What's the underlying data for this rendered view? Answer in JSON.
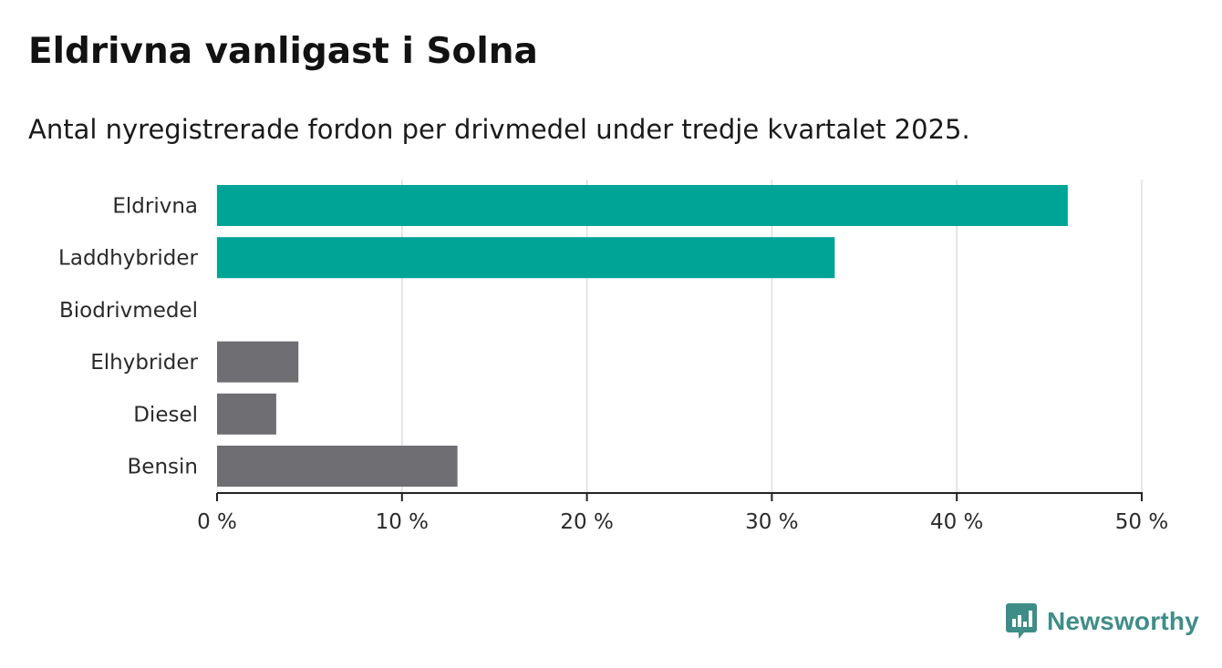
{
  "title": "Eldrivna vanligast i Solna",
  "subtitle": "Antal nyregistrerade fordon per drivmedel under tredje kvartalet 2025.",
  "brand": {
    "name": "Newsworthy",
    "icon": "newsworthy-logo-icon",
    "color": "#3e8d88"
  },
  "colors": {
    "highlight": "#00a497",
    "default": "#6e6e73",
    "grid": "#dddddd",
    "axis": "#222222"
  },
  "chart_data": {
    "type": "bar",
    "orientation": "horizontal",
    "title": "Eldrivna vanligast i Solna",
    "subtitle": "Antal nyregistrerade fordon per drivmedel under tredje kvartalet 2025.",
    "xlabel": "",
    "ylabel": "",
    "unit": "%",
    "categories": [
      "Eldrivna",
      "Laddhybrider",
      "Biodrivmedel",
      "Elhybrider",
      "Diesel",
      "Bensin"
    ],
    "values": [
      46.0,
      33.4,
      0,
      4.4,
      3.2,
      13.0
    ],
    "highlight": [
      true,
      true,
      false,
      false,
      false,
      false
    ],
    "xlim": [
      0,
      50
    ],
    "xticks": [
      0,
      10,
      20,
      30,
      40,
      50
    ],
    "xtick_labels": [
      "0 %",
      "10 %",
      "20 %",
      "30 %",
      "40 %",
      "50 %"
    ],
    "grid": true,
    "legend": "none"
  }
}
